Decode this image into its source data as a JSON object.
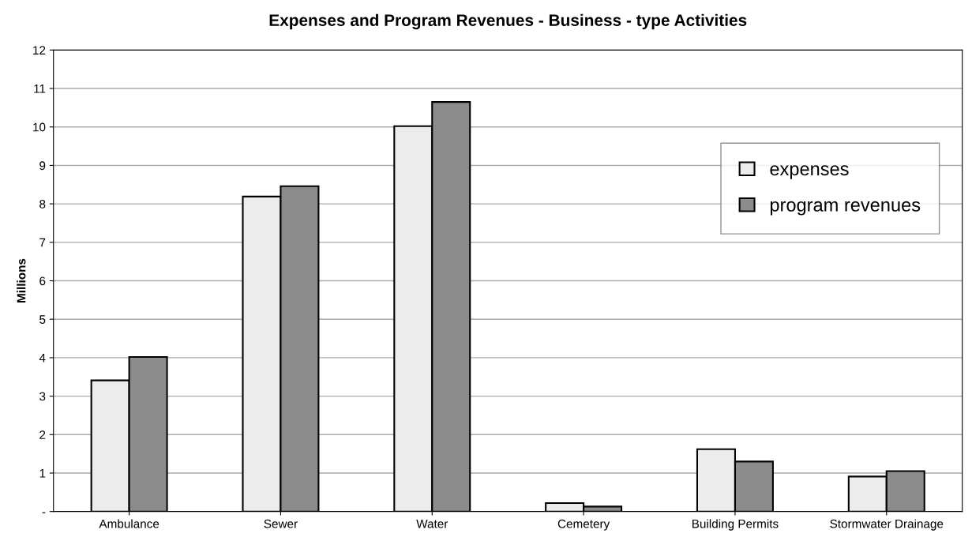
{
  "chart_data": {
    "type": "bar",
    "title": "Expenses and Program Revenues - Business - type Activities",
    "ylabel": "Millions",
    "categories": [
      "Ambulance",
      "Sewer",
      "Water",
      "Cemetery",
      "Building Permits",
      "Stormwater Drainage"
    ],
    "series": [
      {
        "name": "expenses",
        "color": "#ececec",
        "values": [
          3.41,
          8.19,
          10.02,
          0.22,
          1.62,
          0.91
        ]
      },
      {
        "name": "program revenues",
        "color": "#8c8c8c",
        "values": [
          4.02,
          8.46,
          10.65,
          0.13,
          1.3,
          1.05
        ]
      }
    ],
    "ylim": [
      0,
      12
    ],
    "yticks": [
      {
        "value": 0,
        "label": "-"
      },
      1,
      2,
      3,
      4,
      5,
      6,
      7,
      8,
      9,
      10,
      11,
      12
    ],
    "grid": "y",
    "legend": "center right"
  }
}
